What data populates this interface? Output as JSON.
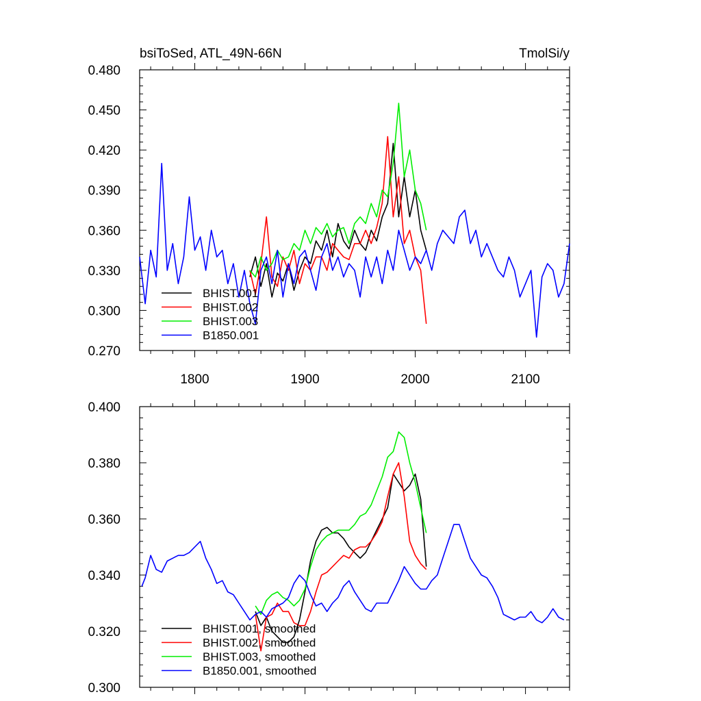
{
  "chart_data": [
    {
      "type": "line",
      "title_left": "bsiToSed, ATL_49N-66N",
      "title_right": "TmolSi/y",
      "xlim": [
        1750,
        2140
      ],
      "ylim": [
        0.27,
        0.48
      ],
      "xticks": [
        1800,
        1900,
        2000,
        2100
      ],
      "xtick_labels": [
        "1800",
        "1900",
        "2000",
        "2100"
      ],
      "yticks": [
        0.27,
        0.3,
        0.33,
        0.36,
        0.39,
        0.42,
        0.45,
        0.48
      ],
      "ytick_labels": [
        "0.270",
        "0.300",
        "0.330",
        "0.360",
        "0.390",
        "0.420",
        "0.450",
        "0.480"
      ],
      "legend_position": "lower-left",
      "series": [
        {
          "name": "BHIST.001",
          "color": "#000000",
          "x": [
            1850,
            1855,
            1860,
            1865,
            1870,
            1875,
            1880,
            1885,
            1890,
            1895,
            1900,
            1905,
            1910,
            1915,
            1920,
            1925,
            1930,
            1935,
            1940,
            1945,
            1950,
            1955,
            1960,
            1965,
            1970,
            1975,
            1980,
            1985,
            1990,
            1995,
            2000,
            2005,
            2010
          ],
          "y": [
            0.325,
            0.34,
            0.318,
            0.335,
            0.31,
            0.328,
            0.322,
            0.335,
            0.315,
            0.33,
            0.34,
            0.335,
            0.352,
            0.345,
            0.36,
            0.34,
            0.365,
            0.352,
            0.346,
            0.36,
            0.35,
            0.345,
            0.36,
            0.352,
            0.37,
            0.38,
            0.425,
            0.37,
            0.4,
            0.37,
            0.39,
            0.36,
            0.345
          ]
        },
        {
          "name": "BHIST.002",
          "color": "#ff0000",
          "x": [
            1850,
            1855,
            1860,
            1865,
            1870,
            1875,
            1880,
            1885,
            1890,
            1895,
            1900,
            1905,
            1910,
            1915,
            1920,
            1925,
            1930,
            1935,
            1940,
            1945,
            1950,
            1955,
            1960,
            1965,
            1970,
            1975,
            1980,
            1985,
            1990,
            1995,
            2000,
            2005,
            2010
          ],
          "y": [
            0.33,
            0.312,
            0.335,
            0.37,
            0.325,
            0.318,
            0.34,
            0.33,
            0.345,
            0.32,
            0.335,
            0.33,
            0.34,
            0.34,
            0.33,
            0.35,
            0.345,
            0.34,
            0.338,
            0.35,
            0.35,
            0.36,
            0.35,
            0.362,
            0.38,
            0.43,
            0.37,
            0.4,
            0.35,
            0.36,
            0.34,
            0.33,
            0.29
          ]
        },
        {
          "name": "BHIST.003",
          "color": "#00ee00",
          "x": [
            1850,
            1855,
            1860,
            1865,
            1870,
            1875,
            1880,
            1885,
            1890,
            1895,
            1900,
            1905,
            1910,
            1915,
            1920,
            1925,
            1930,
            1935,
            1940,
            1945,
            1950,
            1955,
            1960,
            1965,
            1970,
            1975,
            1980,
            1985,
            1990,
            1995,
            2000,
            2005,
            2010
          ],
          "y": [
            0.33,
            0.325,
            0.34,
            0.33,
            0.335,
            0.345,
            0.338,
            0.34,
            0.35,
            0.345,
            0.36,
            0.35,
            0.362,
            0.357,
            0.365,
            0.355,
            0.36,
            0.362,
            0.35,
            0.365,
            0.37,
            0.365,
            0.38,
            0.37,
            0.39,
            0.385,
            0.41,
            0.455,
            0.4,
            0.42,
            0.39,
            0.38,
            0.36
          ]
        },
        {
          "name": "B1850.001",
          "color": "#0000ff",
          "x": [
            1750,
            1755,
            1760,
            1765,
            1770,
            1775,
            1780,
            1785,
            1790,
            1795,
            1800,
            1805,
            1810,
            1815,
            1820,
            1825,
            1830,
            1835,
            1840,
            1845,
            1850,
            1855,
            1860,
            1865,
            1870,
            1875,
            1880,
            1885,
            1890,
            1895,
            1900,
            1905,
            1910,
            1915,
            1920,
            1925,
            1930,
            1935,
            1940,
            1945,
            1950,
            1955,
            1960,
            1965,
            1970,
            1975,
            1980,
            1985,
            1990,
            1995,
            2000,
            2005,
            2010,
            2015,
            2020,
            2025,
            2030,
            2035,
            2040,
            2045,
            2050,
            2055,
            2060,
            2065,
            2070,
            2075,
            2080,
            2085,
            2090,
            2095,
            2100,
            2105,
            2110,
            2115,
            2120,
            2125,
            2130,
            2135,
            2140
          ],
          "y": [
            0.34,
            0.305,
            0.345,
            0.325,
            0.41,
            0.33,
            0.35,
            0.32,
            0.34,
            0.385,
            0.345,
            0.355,
            0.33,
            0.36,
            0.34,
            0.345,
            0.32,
            0.335,
            0.31,
            0.33,
            0.305,
            0.29,
            0.33,
            0.34,
            0.32,
            0.345,
            0.31,
            0.335,
            0.32,
            0.34,
            0.345,
            0.33,
            0.315,
            0.34,
            0.35,
            0.33,
            0.34,
            0.325,
            0.335,
            0.33,
            0.31,
            0.34,
            0.325,
            0.34,
            0.32,
            0.345,
            0.33,
            0.36,
            0.345,
            0.33,
            0.34,
            0.335,
            0.345,
            0.33,
            0.35,
            0.36,
            0.355,
            0.35,
            0.37,
            0.375,
            0.35,
            0.36,
            0.34,
            0.35,
            0.34,
            0.33,
            0.325,
            0.34,
            0.33,
            0.31,
            0.32,
            0.33,
            0.28,
            0.325,
            0.335,
            0.33,
            0.31,
            0.32,
            0.35
          ]
        }
      ]
    },
    {
      "type": "line",
      "ylim": [
        0.3,
        0.4
      ],
      "yticks": [
        0.3,
        0.32,
        0.34,
        0.36,
        0.38,
        0.4
      ],
      "ytick_labels": [
        "0.300",
        "0.320",
        "0.340",
        "0.360",
        "0.380",
        "0.400"
      ],
      "xlim": [
        1750,
        2140
      ],
      "xticks": [
        1800,
        1900,
        2000,
        2100
      ],
      "legend_position": "lower-left",
      "series": [
        {
          "name": "BHIST.001, smoothed",
          "color": "#000000",
          "x": [
            1855,
            1860,
            1865,
            1870,
            1875,
            1880,
            1885,
            1890,
            1895,
            1900,
            1905,
            1910,
            1915,
            1920,
            1925,
            1930,
            1935,
            1940,
            1945,
            1950,
            1955,
            1960,
            1965,
            1970,
            1975,
            1980,
            1985,
            1990,
            1995,
            2000,
            2005,
            2010
          ],
          "y": [
            0.327,
            0.322,
            0.325,
            0.32,
            0.318,
            0.316,
            0.316,
            0.318,
            0.324,
            0.334,
            0.345,
            0.352,
            0.356,
            0.357,
            0.355,
            0.355,
            0.353,
            0.35,
            0.348,
            0.346,
            0.348,
            0.352,
            0.356,
            0.36,
            0.364,
            0.376,
            0.373,
            0.37,
            0.372,
            0.376,
            0.367,
            0.343
          ]
        },
        {
          "name": "BHIST.002, smoothed",
          "color": "#ff0000",
          "x": [
            1855,
            1860,
            1865,
            1870,
            1875,
            1880,
            1885,
            1890,
            1895,
            1900,
            1905,
            1910,
            1915,
            1920,
            1925,
            1930,
            1935,
            1940,
            1945,
            1950,
            1955,
            1960,
            1965,
            1970,
            1975,
            1980,
            1985,
            1990,
            1995,
            2000,
            2005,
            2010
          ],
          "y": [
            0.326,
            0.313,
            0.325,
            0.326,
            0.33,
            0.327,
            0.327,
            0.323,
            0.322,
            0.322,
            0.327,
            0.334,
            0.34,
            0.341,
            0.343,
            0.345,
            0.347,
            0.346,
            0.349,
            0.35,
            0.35,
            0.352,
            0.355,
            0.359,
            0.368,
            0.376,
            0.38,
            0.368,
            0.352,
            0.347,
            0.344,
            0.342
          ]
        },
        {
          "name": "BHIST.003, smoothed",
          "color": "#00ee00",
          "x": [
            1855,
            1860,
            1865,
            1870,
            1875,
            1880,
            1885,
            1890,
            1895,
            1900,
            1905,
            1910,
            1915,
            1920,
            1925,
            1930,
            1935,
            1940,
            1945,
            1950,
            1955,
            1960,
            1965,
            1970,
            1975,
            1980,
            1985,
            1990,
            1995,
            2000,
            2005,
            2010
          ],
          "y": [
            0.329,
            0.326,
            0.331,
            0.333,
            0.334,
            0.332,
            0.331,
            0.329,
            0.331,
            0.335,
            0.343,
            0.349,
            0.352,
            0.354,
            0.355,
            0.356,
            0.356,
            0.356,
            0.358,
            0.361,
            0.362,
            0.365,
            0.37,
            0.375,
            0.382,
            0.384,
            0.391,
            0.389,
            0.38,
            0.373,
            0.364,
            0.355
          ]
        },
        {
          "name": "B1850.001, smoothed",
          "color": "#0000ff",
          "x": [
            1752,
            1755,
            1760,
            1765,
            1770,
            1775,
            1780,
            1785,
            1790,
            1795,
            1800,
            1805,
            1810,
            1815,
            1820,
            1825,
            1830,
            1835,
            1840,
            1845,
            1850,
            1855,
            1860,
            1865,
            1870,
            1875,
            1880,
            1885,
            1890,
            1895,
            1900,
            1905,
            1910,
            1915,
            1920,
            1925,
            1930,
            1935,
            1940,
            1945,
            1950,
            1955,
            1960,
            1965,
            1970,
            1975,
            1980,
            1985,
            1990,
            1995,
            2000,
            2005,
            2010,
            2015,
            2020,
            2025,
            2030,
            2035,
            2040,
            2045,
            2050,
            2055,
            2060,
            2065,
            2070,
            2075,
            2080,
            2085,
            2090,
            2095,
            2100,
            2105,
            2110,
            2115,
            2120,
            2125,
            2130,
            2135
          ],
          "y": [
            0.336,
            0.339,
            0.347,
            0.342,
            0.341,
            0.345,
            0.346,
            0.347,
            0.347,
            0.348,
            0.35,
            0.352,
            0.346,
            0.342,
            0.337,
            0.338,
            0.334,
            0.333,
            0.33,
            0.327,
            0.324,
            0.326,
            0.327,
            0.325,
            0.328,
            0.329,
            0.33,
            0.332,
            0.337,
            0.34,
            0.338,
            0.333,
            0.329,
            0.33,
            0.327,
            0.33,
            0.332,
            0.336,
            0.338,
            0.334,
            0.331,
            0.328,
            0.327,
            0.33,
            0.33,
            0.33,
            0.334,
            0.338,
            0.343,
            0.34,
            0.337,
            0.335,
            0.335,
            0.338,
            0.34,
            0.346,
            0.352,
            0.358,
            0.358,
            0.352,
            0.346,
            0.343,
            0.34,
            0.339,
            0.336,
            0.332,
            0.326,
            0.325,
            0.324,
            0.325,
            0.325,
            0.327,
            0.324,
            0.323,
            0.325,
            0.328,
            0.325,
            0.324
          ]
        }
      ]
    }
  ]
}
